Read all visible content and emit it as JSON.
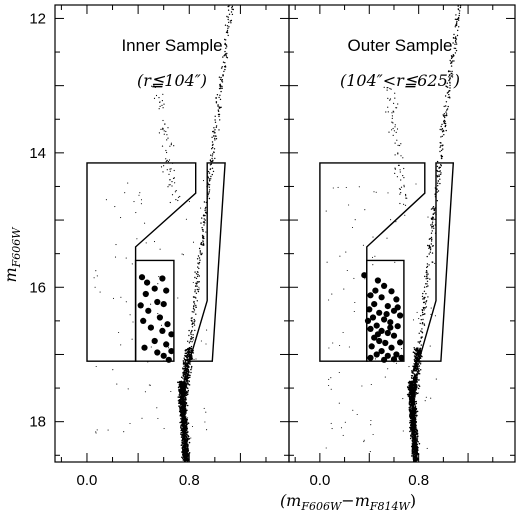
{
  "figure": {
    "ylabel": "m",
    "ylabel_sub": "F606W",
    "xlabel_open": "(m",
    "xlabel_sub1": "F606W",
    "xlabel_mid": "−m",
    "xlabel_sub2": "F814W",
    "xlabel_close": ")"
  },
  "chart_data": [
    {
      "type": "scatter",
      "panel": "left",
      "title": "Inner Sample",
      "subtitle": "(r≦104″)",
      "xlim": [
        -0.25,
        1.58
      ],
      "ylim": [
        18.6,
        11.8
      ],
      "xticks": [
        "0.0",
        "0.8"
      ],
      "xtick_values": [
        0.0,
        0.8
      ],
      "yticks": [
        "12",
        "14",
        "16",
        "18"
      ],
      "ytick_values": [
        12,
        14,
        16,
        18
      ],
      "grid": false,
      "selection_boxes": [
        [
          [
            0.0,
            14.15
          ],
          [
            0.85,
            14.15
          ],
          [
            0.85,
            14.6
          ],
          [
            0.38,
            15.4
          ],
          [
            0.38,
            17.1
          ],
          [
            0.0,
            17.1
          ]
        ],
        [
          [
            0.38,
            15.6
          ],
          [
            0.68,
            15.6
          ],
          [
            0.68,
            17.1
          ],
          [
            0.38,
            17.1
          ]
        ],
        [
          [
            0.94,
            14.15
          ],
          [
            1.08,
            14.15
          ],
          [
            0.98,
            17.1
          ],
          [
            0.8,
            17.1
          ],
          [
            0.94,
            16.2
          ]
        ]
      ],
      "bss_stars": [
        {
          "x": 0.43,
          "y": 15.85
        },
        {
          "x": 0.47,
          "y": 15.93
        },
        {
          "x": 0.59,
          "y": 15.87
        },
        {
          "x": 0.53,
          "y": 16.02
        },
        {
          "x": 0.46,
          "y": 16.1
        },
        {
          "x": 0.62,
          "y": 16.05
        },
        {
          "x": 0.42,
          "y": 16.27
        },
        {
          "x": 0.55,
          "y": 16.22
        },
        {
          "x": 0.6,
          "y": 16.25
        },
        {
          "x": 0.48,
          "y": 16.35
        },
        {
          "x": 0.44,
          "y": 16.5
        },
        {
          "x": 0.57,
          "y": 16.45
        },
        {
          "x": 0.63,
          "y": 16.55
        },
        {
          "x": 0.5,
          "y": 16.6
        },
        {
          "x": 0.59,
          "y": 16.65
        },
        {
          "x": 0.66,
          "y": 16.7
        },
        {
          "x": 0.53,
          "y": 16.8
        },
        {
          "x": 0.62,
          "y": 16.85
        },
        {
          "x": 0.45,
          "y": 16.9
        },
        {
          "x": 0.66,
          "y": 16.95
        },
        {
          "x": 0.6,
          "y": 17.02
        },
        {
          "x": 0.64,
          "y": 17.08
        },
        {
          "x": 0.55,
          "y": 16.97
        }
      ]
    },
    {
      "type": "scatter",
      "panel": "right",
      "title": "Outer Sample",
      "subtitle": "(104″<r≦625″)",
      "xlim": [
        -0.25,
        1.58
      ],
      "ylim": [
        18.6,
        11.8
      ],
      "xticks": [
        "0.0",
        "0.8"
      ],
      "xtick_values": [
        0.0,
        0.8
      ],
      "yticks": [],
      "grid": false,
      "selection_boxes": [
        [
          [
            0.0,
            14.15
          ],
          [
            0.85,
            14.15
          ],
          [
            0.85,
            14.6
          ],
          [
            0.38,
            15.4
          ],
          [
            0.38,
            17.1
          ],
          [
            0.0,
            17.1
          ]
        ],
        [
          [
            0.38,
            15.6
          ],
          [
            0.68,
            15.6
          ],
          [
            0.68,
            17.1
          ],
          [
            0.38,
            17.1
          ]
        ],
        [
          [
            0.94,
            14.15
          ],
          [
            1.08,
            14.15
          ],
          [
            0.98,
            17.1
          ],
          [
            0.8,
            17.1
          ],
          [
            0.94,
            16.2
          ]
        ]
      ],
      "bss_stars": [
        {
          "x": 0.36,
          "y": 15.82
        },
        {
          "x": 0.47,
          "y": 15.9
        },
        {
          "x": 0.52,
          "y": 15.98
        },
        {
          "x": 0.45,
          "y": 16.05
        },
        {
          "x": 0.58,
          "y": 16.06
        },
        {
          "x": 0.41,
          "y": 16.12
        },
        {
          "x": 0.5,
          "y": 16.15
        },
        {
          "x": 0.62,
          "y": 16.18
        },
        {
          "x": 0.44,
          "y": 16.25
        },
        {
          "x": 0.55,
          "y": 16.28
        },
        {
          "x": 0.4,
          "y": 16.33
        },
        {
          "x": 0.48,
          "y": 16.38
        },
        {
          "x": 0.6,
          "y": 16.35
        },
        {
          "x": 0.65,
          "y": 16.42
        },
        {
          "x": 0.43,
          "y": 16.45
        },
        {
          "x": 0.52,
          "y": 16.48
        },
        {
          "x": 0.57,
          "y": 16.52
        },
        {
          "x": 0.46,
          "y": 16.57
        },
        {
          "x": 0.63,
          "y": 16.58
        },
        {
          "x": 0.41,
          "y": 16.62
        },
        {
          "x": 0.5,
          "y": 16.65
        },
        {
          "x": 0.55,
          "y": 16.68
        },
        {
          "x": 0.6,
          "y": 16.72
        },
        {
          "x": 0.44,
          "y": 16.75
        },
        {
          "x": 0.48,
          "y": 16.8
        },
        {
          "x": 0.53,
          "y": 16.83
        },
        {
          "x": 0.65,
          "y": 16.82
        },
        {
          "x": 0.42,
          "y": 16.88
        },
        {
          "x": 0.58,
          "y": 16.9
        },
        {
          "x": 0.5,
          "y": 16.95
        },
        {
          "x": 0.46,
          "y": 17.0
        },
        {
          "x": 0.55,
          "y": 17.02
        },
        {
          "x": 0.62,
          "y": 17.0
        },
        {
          "x": 0.41,
          "y": 17.05
        },
        {
          "x": 0.6,
          "y": 17.07
        },
        {
          "x": 0.66,
          "y": 17.05
        },
        {
          "x": 0.52,
          "y": 17.08
        },
        {
          "x": 0.47,
          "y": 16.7
        },
        {
          "x": 0.57,
          "y": 16.6
        },
        {
          "x": 0.39,
          "y": 16.5
        },
        {
          "x": 0.63,
          "y": 16.3
        },
        {
          "x": 0.54,
          "y": 16.4
        }
      ]
    }
  ]
}
